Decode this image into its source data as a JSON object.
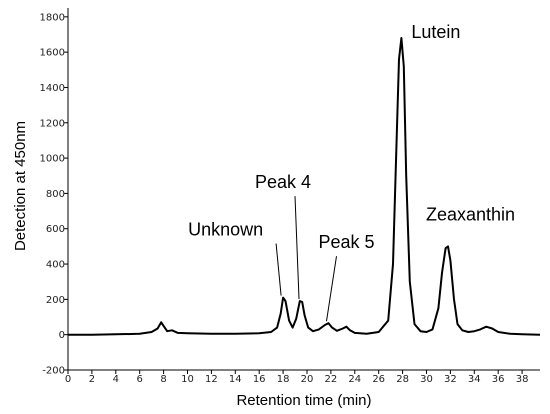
{
  "chart_data": {
    "type": "line",
    "title": "",
    "xlabel": "Retention time (min)",
    "ylabel": "Detection at 450nm",
    "xlim": [
      0,
      39.5
    ],
    "ylim": [
      -200,
      1850
    ],
    "grid": false,
    "x_ticks": [
      0,
      2,
      4,
      6,
      8,
      10,
      12,
      14,
      16,
      18,
      20,
      22,
      24,
      26,
      28,
      30,
      32,
      34,
      36,
      38
    ],
    "y_ticks": [
      -200,
      0,
      200,
      400,
      600,
      800,
      1000,
      1200,
      1400,
      1600,
      1800
    ],
    "colors": {
      "line": "#000000",
      "axes": "#000000"
    },
    "series": [
      {
        "x": [
          0,
          2,
          4,
          6,
          7,
          7.5,
          7.8,
          8.0,
          8.3,
          8.7,
          9.2,
          10,
          12,
          14,
          16,
          17.0,
          17.5,
          17.8,
          18.0,
          18.2,
          18.5,
          18.8,
          19.1,
          19.4,
          19.6,
          19.8,
          20.1,
          20.5,
          21.0,
          21.5,
          21.8,
          22.1,
          22.5,
          23.0,
          23.3,
          23.6,
          24.0,
          25.0,
          26.0,
          26.8,
          27.2,
          27.5,
          27.7,
          27.9,
          28.1,
          28.3,
          28.6,
          29.0,
          29.5,
          30.0,
          30.5,
          31.0,
          31.3,
          31.6,
          31.8,
          32.0,
          32.3,
          32.6,
          33.0,
          33.5,
          34.0,
          34.5,
          35.0,
          35.5,
          36.0,
          37.0,
          38.0,
          39.5
        ],
        "y": [
          0,
          0,
          2,
          5,
          15,
          35,
          70,
          50,
          20,
          25,
          10,
          8,
          5,
          5,
          8,
          15,
          40,
          120,
          210,
          190,
          80,
          40,
          90,
          190,
          185,
          110,
          40,
          20,
          30,
          55,
          65,
          40,
          22,
          35,
          45,
          25,
          10,
          5,
          15,
          80,
          400,
          1100,
          1560,
          1680,
          1520,
          900,
          300,
          60,
          20,
          15,
          30,
          150,
          350,
          490,
          500,
          420,
          200,
          60,
          25,
          15,
          20,
          30,
          45,
          35,
          15,
          5,
          2,
          0
        ]
      }
    ],
    "annotations": [
      {
        "text": "Unknown",
        "x": 18.0,
        "y": 210
      },
      {
        "text": "Peak 4",
        "x": 19.5,
        "y": 190
      },
      {
        "text": "Peak 5",
        "x": 21.8,
        "y": 65
      },
      {
        "text": "Lutein",
        "x": 27.9,
        "y": 1680
      },
      {
        "text": "Zeaxanthin",
        "x": 31.8,
        "y": 500
      }
    ]
  }
}
